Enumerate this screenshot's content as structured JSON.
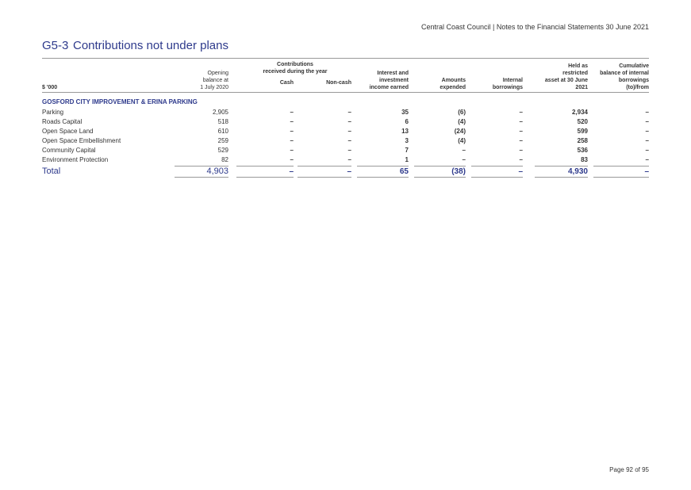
{
  "header": {
    "running_title": "Central Coast Council | Notes to the Financial Statements 30 June 2021",
    "title_number": "G5-3",
    "title": "Contributions not under plans"
  },
  "table": {
    "unit_label": "$ '000",
    "group_header": [
      "Contributions",
      "received during the year"
    ],
    "columns": [
      [
        "Opening",
        "balance at",
        "1 July 2020"
      ],
      [
        "Cash"
      ],
      [
        "Non-cash"
      ],
      [
        "Interest and",
        "investment",
        "income earned"
      ],
      [
        "Amounts",
        "expended"
      ],
      [
        "Internal",
        "borrowings"
      ],
      [
        "Held as",
        "restricted",
        "asset at 30 June",
        "2021"
      ],
      [
        "Cumulative",
        "balance of internal",
        "borrowings",
        "(to)/from"
      ]
    ],
    "section": "GOSFORD CITY IMPROVEMENT & ERINA PARKING",
    "rows": [
      [
        "Parking",
        "2,905",
        "–",
        "–",
        "35",
        "(6)",
        "–",
        "2,934",
        "–"
      ],
      [
        "Roads Capital",
        "518",
        "–",
        "–",
        "6",
        "(4)",
        "–",
        "520",
        "–"
      ],
      [
        "Open Space Land",
        "610",
        "–",
        "–",
        "13",
        "(24)",
        "–",
        "599",
        "–"
      ],
      [
        "Open Space Embellishment",
        "259",
        "–",
        "–",
        "3",
        "(4)",
        "–",
        "258",
        "–"
      ],
      [
        "Community Capital",
        "529",
        "–",
        "–",
        "7",
        "–",
        "–",
        "536",
        "–"
      ],
      [
        "Environment Protection",
        "82",
        "–",
        "–",
        "1",
        "–",
        "–",
        "83",
        "–"
      ]
    ],
    "total": [
      "Total",
      "4,903",
      "–",
      "–",
      "65",
      "(38)",
      "–",
      "4,930",
      "–"
    ]
  },
  "footer": {
    "page": "Page 92 of 95"
  }
}
